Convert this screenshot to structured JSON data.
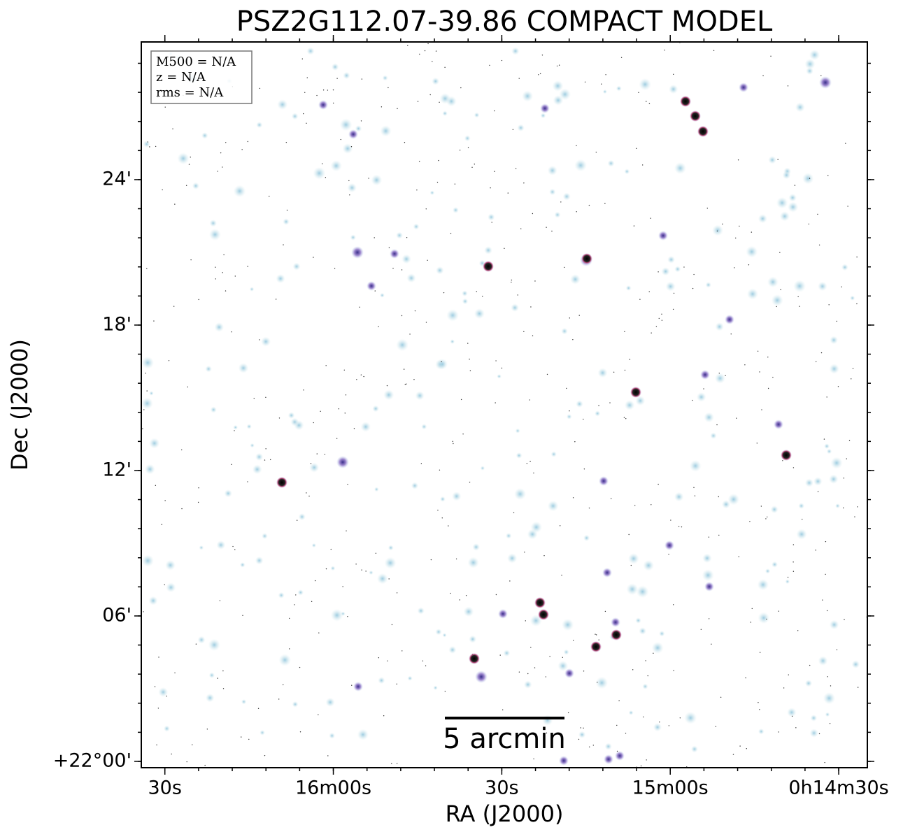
{
  "chart_data": {
    "type": "image",
    "title": "PSZ2G112.07-39.86 COMPACT MODEL",
    "x_label": "RA (J2000)",
    "y_label": "Dec (J2000)",
    "info_box": [
      "M500 = N/A",
      "z = N/A",
      "rms = N/A"
    ],
    "scale_bar": "5 arcmin",
    "xlim": [
      994.2,
      864.9
    ],
    "xticks": [
      {
        "value": 990,
        "label": "30s"
      },
      {
        "value": 960,
        "label": "16m00s"
      },
      {
        "value": 930,
        "label": "30s"
      },
      {
        "value": 900,
        "label": "15m00s"
      },
      {
        "value": 870,
        "label": "0h14m30s"
      }
    ],
    "ylim": [
      -0.26,
      29.68
    ],
    "yticks": [
      {
        "value": 0,
        "label": "+22°00'"
      },
      {
        "value": 6,
        "label": "06'"
      },
      {
        "value": 12,
        "label": "12'"
      },
      {
        "value": 18,
        "label": "18'"
      },
      {
        "value": 24,
        "label": "24'"
      }
    ]
  }
}
